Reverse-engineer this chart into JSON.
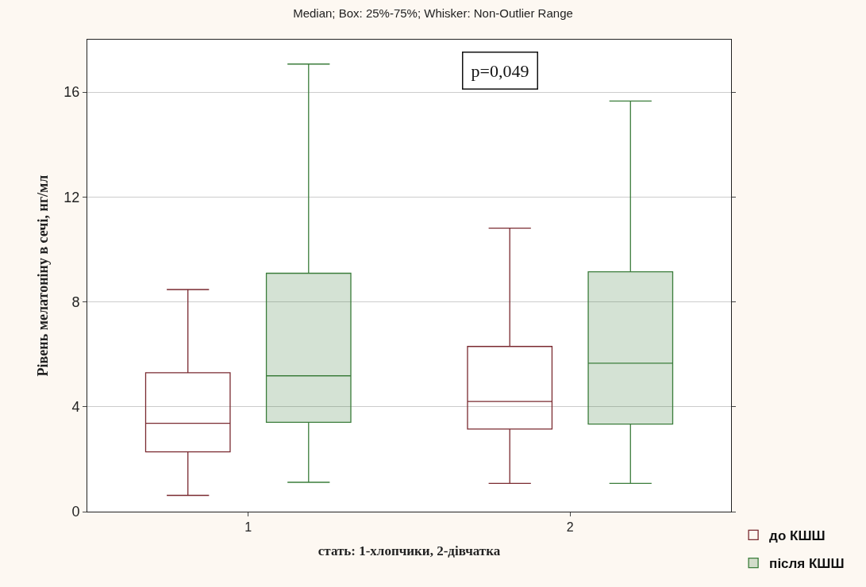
{
  "chart_data": {
    "type": "box",
    "title": "Median; Box: 25%-75%; Whisker: Non-Outlier Range",
    "xlabel": "стать: 1-хлопчики, 2-дівчатка",
    "ylabel": "Рівень мелатоніну в сечі, нг/мл",
    "categories": [
      "1",
      "2"
    ],
    "series": [
      {
        "name": "до КШШ",
        "color": "#7a2a30",
        "boxes": [
          {
            "low": 0.62,
            "q1": 2.28,
            "median": 3.37,
            "q3": 5.3,
            "high": 8.47
          },
          {
            "low": 1.08,
            "q1": 3.15,
            "median": 4.2,
            "q3": 6.3,
            "high": 10.81
          }
        ]
      },
      {
        "name": "після КШШ",
        "color": "#3b7d3b",
        "boxes": [
          {
            "low": 1.12,
            "q1": 3.41,
            "median": 5.18,
            "q3": 9.09,
            "high": 17.07
          },
          {
            "low": 1.08,
            "q1": 3.34,
            "median": 5.66,
            "q3": 9.15,
            "high": 15.66
          }
        ]
      }
    ],
    "ylim": [
      0,
      18
    ],
    "yticks": [
      0,
      4,
      8,
      12,
      16
    ],
    "grid": "y",
    "legend": "bottom right",
    "annotations": [
      "p=0,049"
    ]
  }
}
